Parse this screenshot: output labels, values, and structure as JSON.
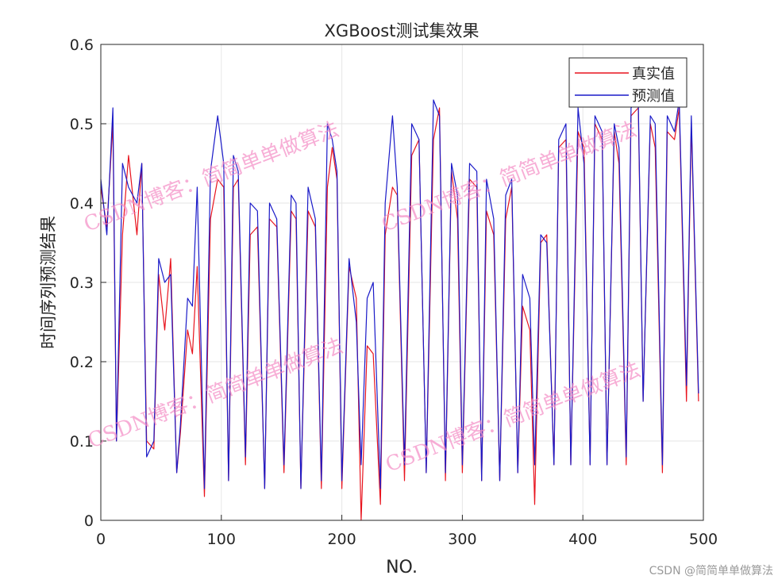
{
  "chart_data": {
    "type": "line",
    "title": "XGBoost测试集效果",
    "xlabel": "NO.",
    "ylabel": "时间序列预测结果",
    "xlim": [
      0,
      500
    ],
    "ylim": [
      0,
      0.6
    ],
    "grid": true,
    "legend_position": "top-right",
    "x_ticks": [
      "0",
      "100",
      "200",
      "300",
      "400",
      "500"
    ],
    "y_ticks": [
      "0",
      "0.1",
      "0.2",
      "0.3",
      "0.4",
      "0.5",
      "0.6"
    ],
    "series": [
      {
        "name": "真实值",
        "color": "#e8141e",
        "x": [
          0,
          5,
          10,
          13,
          18,
          23,
          30,
          34,
          38,
          44,
          48,
          53,
          58,
          63,
          66,
          72,
          76,
          80,
          86,
          91,
          97,
          102,
          106,
          110,
          114,
          120,
          124,
          130,
          136,
          140,
          146,
          152,
          158,
          162,
          166,
          172,
          178,
          183,
          188,
          192,
          196,
          200,
          206,
          212,
          216,
          221,
          226,
          232,
          236,
          242,
          246,
          252,
          258,
          264,
          270,
          276,
          281,
          286,
          291,
          296,
          300,
          306,
          312,
          316,
          320,
          326,
          331,
          336,
          341,
          346,
          350,
          356,
          360,
          365,
          370,
          376,
          380,
          386,
          390,
          396,
          401,
          406,
          410,
          416,
          420,
          426,
          430,
          436,
          440,
          446,
          450,
          456,
          460,
          466,
          470,
          476,
          480,
          486,
          490,
          496
        ],
        "values": [
          0.42,
          0.37,
          0.5,
          0.1,
          0.36,
          0.46,
          0.36,
          0.45,
          0.1,
          0.09,
          0.31,
          0.24,
          0.33,
          0.06,
          0.11,
          0.24,
          0.21,
          0.32,
          0.03,
          0.38,
          0.43,
          0.42,
          0.05,
          0.42,
          0.43,
          0.07,
          0.36,
          0.37,
          0.04,
          0.38,
          0.37,
          0.06,
          0.39,
          0.38,
          0.04,
          0.39,
          0.37,
          0.04,
          0.42,
          0.47,
          0.43,
          0.04,
          0.32,
          0.28,
          0.0,
          0.22,
          0.21,
          0.02,
          0.36,
          0.42,
          0.41,
          0.05,
          0.46,
          0.48,
          0.06,
          0.48,
          0.52,
          0.05,
          0.44,
          0.38,
          0.06,
          0.43,
          0.42,
          0.05,
          0.39,
          0.36,
          0.05,
          0.38,
          0.42,
          0.06,
          0.27,
          0.24,
          0.02,
          0.35,
          0.36,
          0.07,
          0.47,
          0.48,
          0.07,
          0.49,
          0.47,
          0.07,
          0.5,
          0.48,
          0.07,
          0.49,
          0.45,
          0.07,
          0.51,
          0.52,
          0.15,
          0.5,
          0.47,
          0.06,
          0.49,
          0.48,
          0.52,
          0.15,
          0.5,
          0.15
        ]
      },
      {
        "name": "预测值",
        "color": "#1a1ac8",
        "x": [
          0,
          5,
          10,
          13,
          18,
          23,
          30,
          34,
          38,
          44,
          48,
          53,
          58,
          63,
          66,
          72,
          76,
          80,
          86,
          91,
          97,
          102,
          106,
          110,
          114,
          120,
          124,
          130,
          136,
          140,
          146,
          152,
          158,
          162,
          166,
          172,
          178,
          183,
          188,
          192,
          196,
          200,
          206,
          212,
          216,
          221,
          226,
          232,
          236,
          242,
          246,
          252,
          258,
          264,
          270,
          276,
          281,
          286,
          291,
          296,
          300,
          306,
          312,
          316,
          320,
          326,
          331,
          336,
          341,
          346,
          350,
          356,
          360,
          365,
          370,
          376,
          380,
          386,
          390,
          396,
          401,
          406,
          410,
          416,
          420,
          426,
          430,
          436,
          440,
          446,
          450,
          456,
          460,
          466,
          470,
          476,
          480,
          486,
          490,
          496
        ],
        "values": [
          0.43,
          0.36,
          0.52,
          0.1,
          0.45,
          0.42,
          0.4,
          0.45,
          0.08,
          0.1,
          0.33,
          0.3,
          0.31,
          0.06,
          0.12,
          0.28,
          0.27,
          0.42,
          0.04,
          0.44,
          0.51,
          0.45,
          0.05,
          0.46,
          0.44,
          0.08,
          0.4,
          0.39,
          0.04,
          0.4,
          0.38,
          0.07,
          0.41,
          0.4,
          0.04,
          0.42,
          0.38,
          0.05,
          0.5,
          0.48,
          0.44,
          0.05,
          0.33,
          0.25,
          0.07,
          0.28,
          0.3,
          0.04,
          0.4,
          0.51,
          0.42,
          0.07,
          0.5,
          0.48,
          0.06,
          0.53,
          0.51,
          0.06,
          0.45,
          0.41,
          0.07,
          0.45,
          0.44,
          0.05,
          0.43,
          0.38,
          0.05,
          0.41,
          0.43,
          0.06,
          0.31,
          0.28,
          0.07,
          0.36,
          0.35,
          0.07,
          0.48,
          0.5,
          0.07,
          0.52,
          0.45,
          0.07,
          0.51,
          0.49,
          0.07,
          0.5,
          0.47,
          0.08,
          0.52,
          0.53,
          0.15,
          0.51,
          0.5,
          0.07,
          0.51,
          0.49,
          0.53,
          0.17,
          0.51,
          0.16
        ]
      }
    ]
  },
  "watermarks": [
    "CSDN博客：简简单单做算法",
    "CSDN博客：简简单单做算法",
    "CSDN博客：简简单单做算法",
    "CSDN博客：简简单单做算法"
  ],
  "footer_credit": "CSDN @简简单单做算法"
}
